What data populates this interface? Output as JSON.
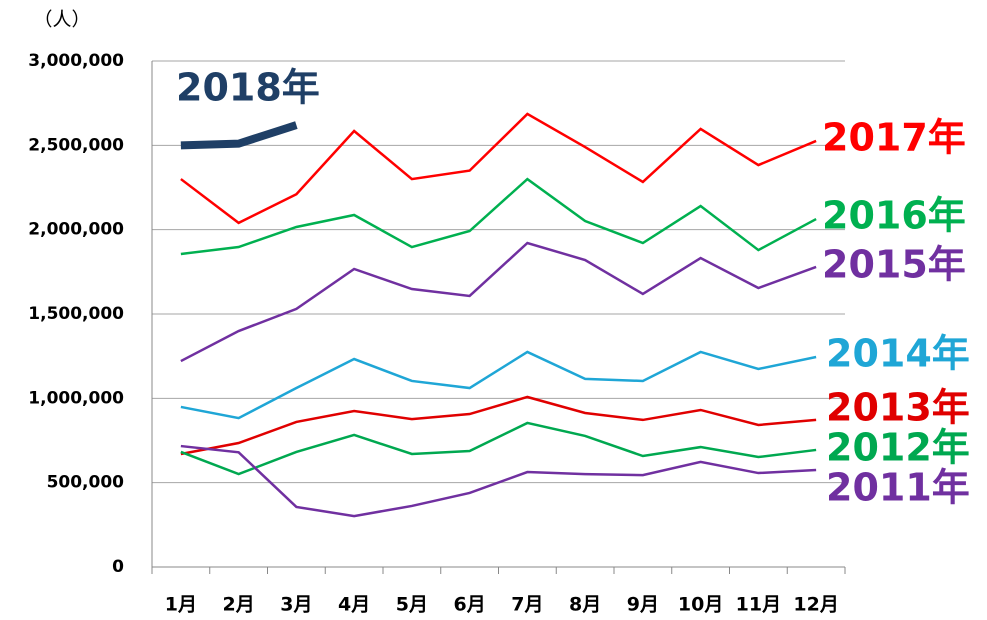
{
  "chart_data": {
    "type": "line",
    "y_unit": "（人）",
    "categories": [
      "1月",
      "2月",
      "3月",
      "4月",
      "5月",
      "6月",
      "7月",
      "8月",
      "9月",
      "10月",
      "11月",
      "12月"
    ],
    "series": [
      {
        "name": "2018年",
        "color": "#1f3f66",
        "values": [
          2500000,
          2510000,
          2620000,
          null,
          null,
          null,
          null,
          null,
          null,
          null,
          null,
          null
        ]
      },
      {
        "name": "2017年",
        "color": "#ff0000",
        "values": [
          2300000,
          2040000,
          2210000,
          2585000,
          2300000,
          2350000,
          2686000,
          2490000,
          2283000,
          2597000,
          2383000,
          2526000
        ]
      },
      {
        "name": "2016年",
        "color": "#00b050",
        "values": [
          1856000,
          1897000,
          2016000,
          2087000,
          1897000,
          1992000,
          2300000,
          2051000,
          1921000,
          2140000,
          1879000,
          2063000
        ]
      },
      {
        "name": "2015年",
        "color": "#7030a0",
        "values": [
          1221000,
          1399000,
          1530000,
          1767000,
          1648000,
          1607000,
          1921000,
          1820000,
          1619000,
          1832000,
          1654000,
          1779000
        ]
      },
      {
        "name": "2014年",
        "color": "#1fa6d6",
        "values": [
          949000,
          883000,
          1061000,
          1233000,
          1103000,
          1061000,
          1275000,
          1115000,
          1103000,
          1275000,
          1174000,
          1245000
        ]
      },
      {
        "name": "2013年",
        "color": "#e00000",
        "values": [
          670000,
          735000,
          860000,
          925000,
          877000,
          907000,
          1008000,
          913000,
          872000,
          931000,
          842000,
          872000
        ]
      },
      {
        "name": "2012年",
        "color": "#00a850",
        "values": [
          682000,
          551000,
          682000,
          783000,
          670000,
          688000,
          854000,
          777000,
          658000,
          711000,
          652000,
          694000
        ]
      },
      {
        "name": "2011年",
        "color": "#7030a0",
        "values": [
          717000,
          680000,
          356000,
          302000,
          362000,
          439000,
          563000,
          551000,
          545000,
          623000,
          557000,
          575000
        ]
      }
    ],
    "ylim": [
      0,
      3000000
    ],
    "yticks": [
      0,
      {
        "value": 500000,
        "label": "500,000"
      },
      {
        "value": 1000000,
        "label": "1,000,000"
      },
      {
        "value": 1500000,
        "label": "1,500,000"
      },
      {
        "value": 2000000,
        "label": "2,000,000"
      },
      {
        "value": 2500000,
        "label": "2,500,000"
      },
      {
        "value": 3000000,
        "label": "3,000,000"
      }
    ],
    "grid": true
  }
}
